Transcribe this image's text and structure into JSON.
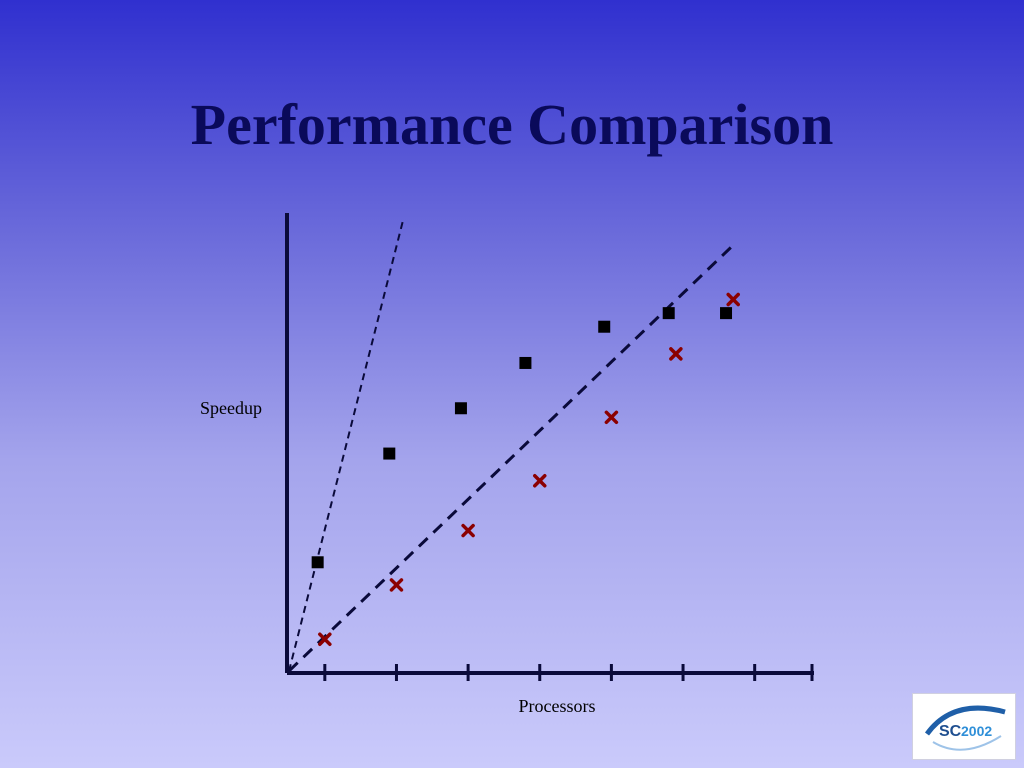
{
  "slide": {
    "title": "Performance Comparison"
  },
  "logo": {
    "text_sc": "SC",
    "text_year": "2002"
  },
  "colors": {
    "title": "#0a0a5a",
    "axis": "#0a0a3a",
    "square_series": "#000000",
    "cross_series": "#8b0000",
    "logo_blue": "#1f5fa8"
  },
  "chart_data": {
    "type": "scatter",
    "xlabel": "Processors",
    "ylabel": "Speedup",
    "x_ticks": [
      1,
      2,
      3,
      4,
      5,
      6,
      7
    ],
    "xlim": [
      0.5,
      7.8
    ],
    "ylim": [
      0,
      10
    ],
    "grid": false,
    "legend": "none",
    "series": [
      {
        "marker": "square",
        "color": "#000000",
        "points": [
          [
            0.9,
            2.4
          ],
          [
            1.9,
            4.8
          ],
          [
            2.9,
            5.8
          ],
          [
            3.8,
            6.8
          ],
          [
            4.9,
            7.6
          ],
          [
            5.8,
            7.9
          ],
          [
            6.6,
            7.9
          ]
        ]
      },
      {
        "marker": "cross",
        "color": "#8b0000",
        "points": [
          [
            1.0,
            0.7
          ],
          [
            2.0,
            1.9
          ],
          [
            3.0,
            3.1
          ],
          [
            4.0,
            4.2
          ],
          [
            5.0,
            5.6
          ],
          [
            5.9,
            7.0
          ],
          [
            6.7,
            8.2
          ]
        ]
      }
    ],
    "reference_lines": [
      {
        "style": "dashed",
        "points": [
          [
            0.5,
            0.0
          ],
          [
            2.1,
            10.0
          ]
        ]
      },
      {
        "style": "dashed",
        "points": [
          [
            0.5,
            0.0
          ],
          [
            6.7,
            9.4
          ]
        ]
      }
    ]
  }
}
